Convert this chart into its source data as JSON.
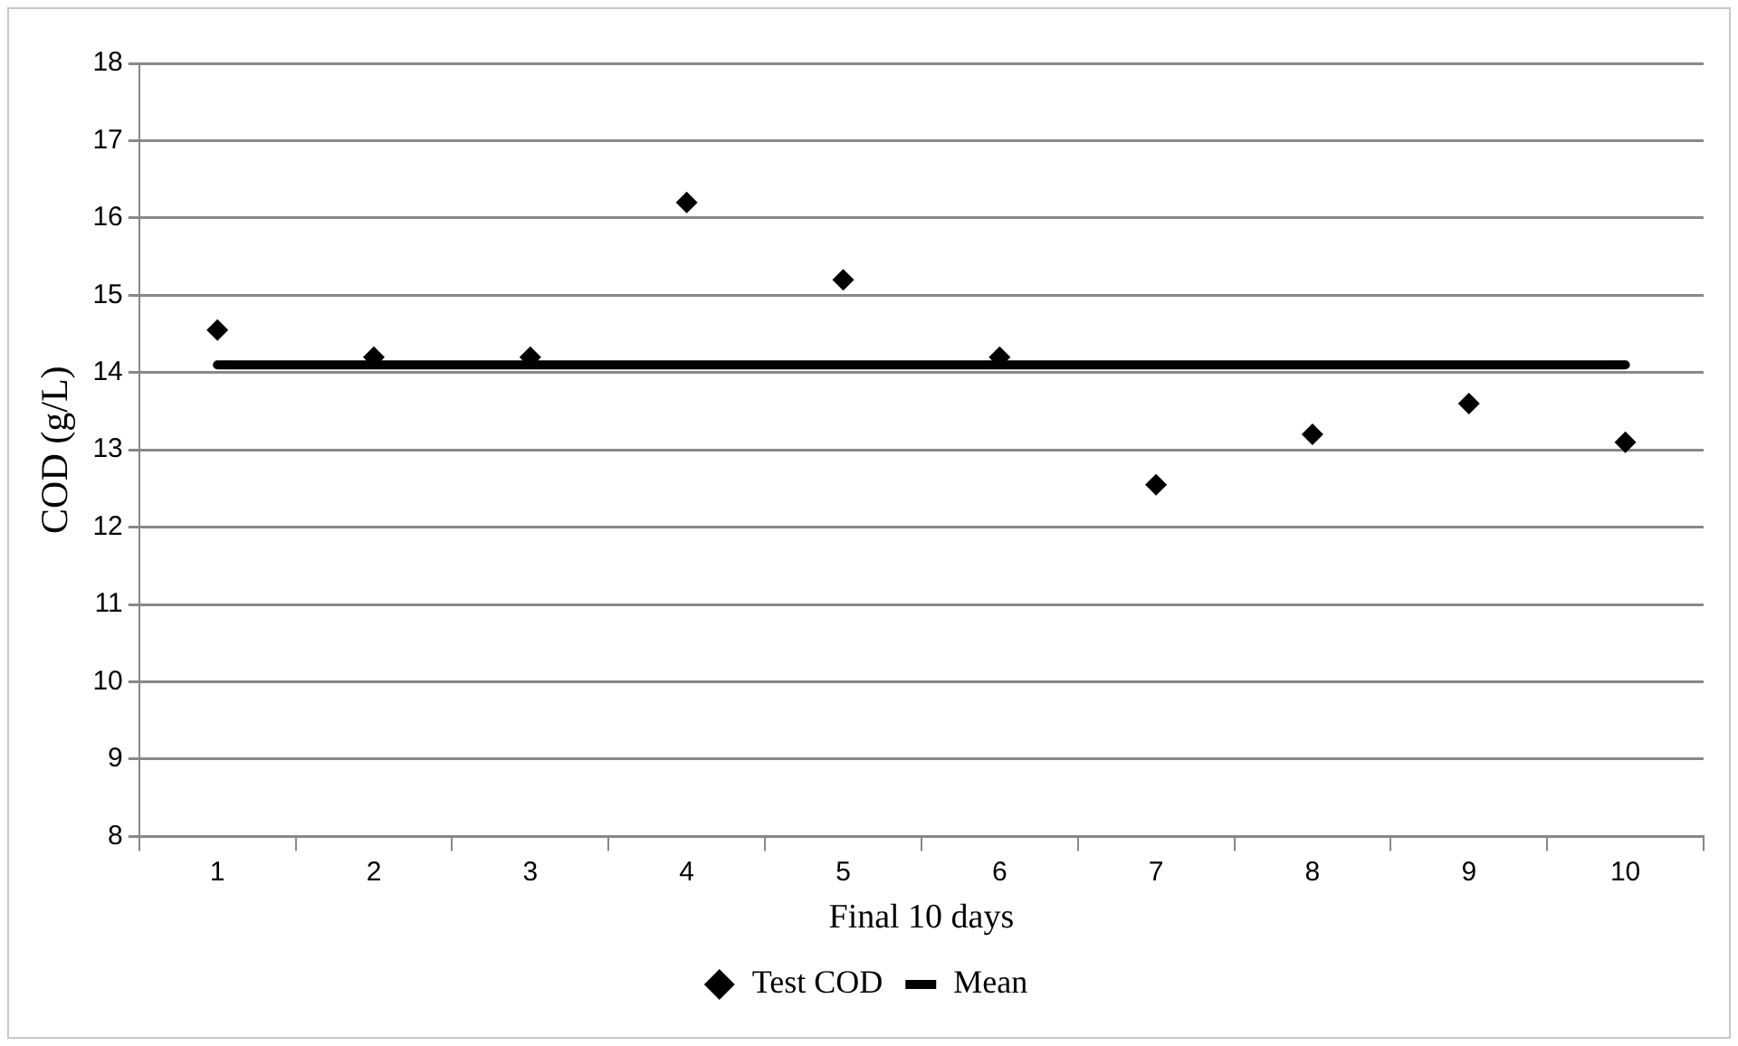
{
  "chart_data": {
    "type": "scatter",
    "categories": [
      "1",
      "2",
      "3",
      "4",
      "5",
      "6",
      "7",
      "8",
      "9",
      "10"
    ],
    "xlabel": "Final 10 days",
    "ylabel": "COD (g/L)",
    "ylim": [
      8,
      18
    ],
    "yticks": [
      8,
      9,
      10,
      11,
      12,
      13,
      14,
      15,
      16,
      17,
      18
    ],
    "grid": "y",
    "legend": "bottom",
    "series": [
      {
        "name": "Test COD",
        "marker": "diamond",
        "color": "#000000",
        "values": [
          14.55,
          14.2,
          14.2,
          16.2,
          15.2,
          14.2,
          12.55,
          13.2,
          13.6,
          13.1
        ]
      },
      {
        "name": "Mean",
        "type": "line",
        "marker": "none",
        "color": "#000000",
        "line_style": "solid",
        "values": [
          14.1,
          14.1,
          14.1,
          14.1,
          14.1,
          14.1,
          14.1,
          14.1,
          14.1,
          14.1
        ]
      }
    ]
  }
}
